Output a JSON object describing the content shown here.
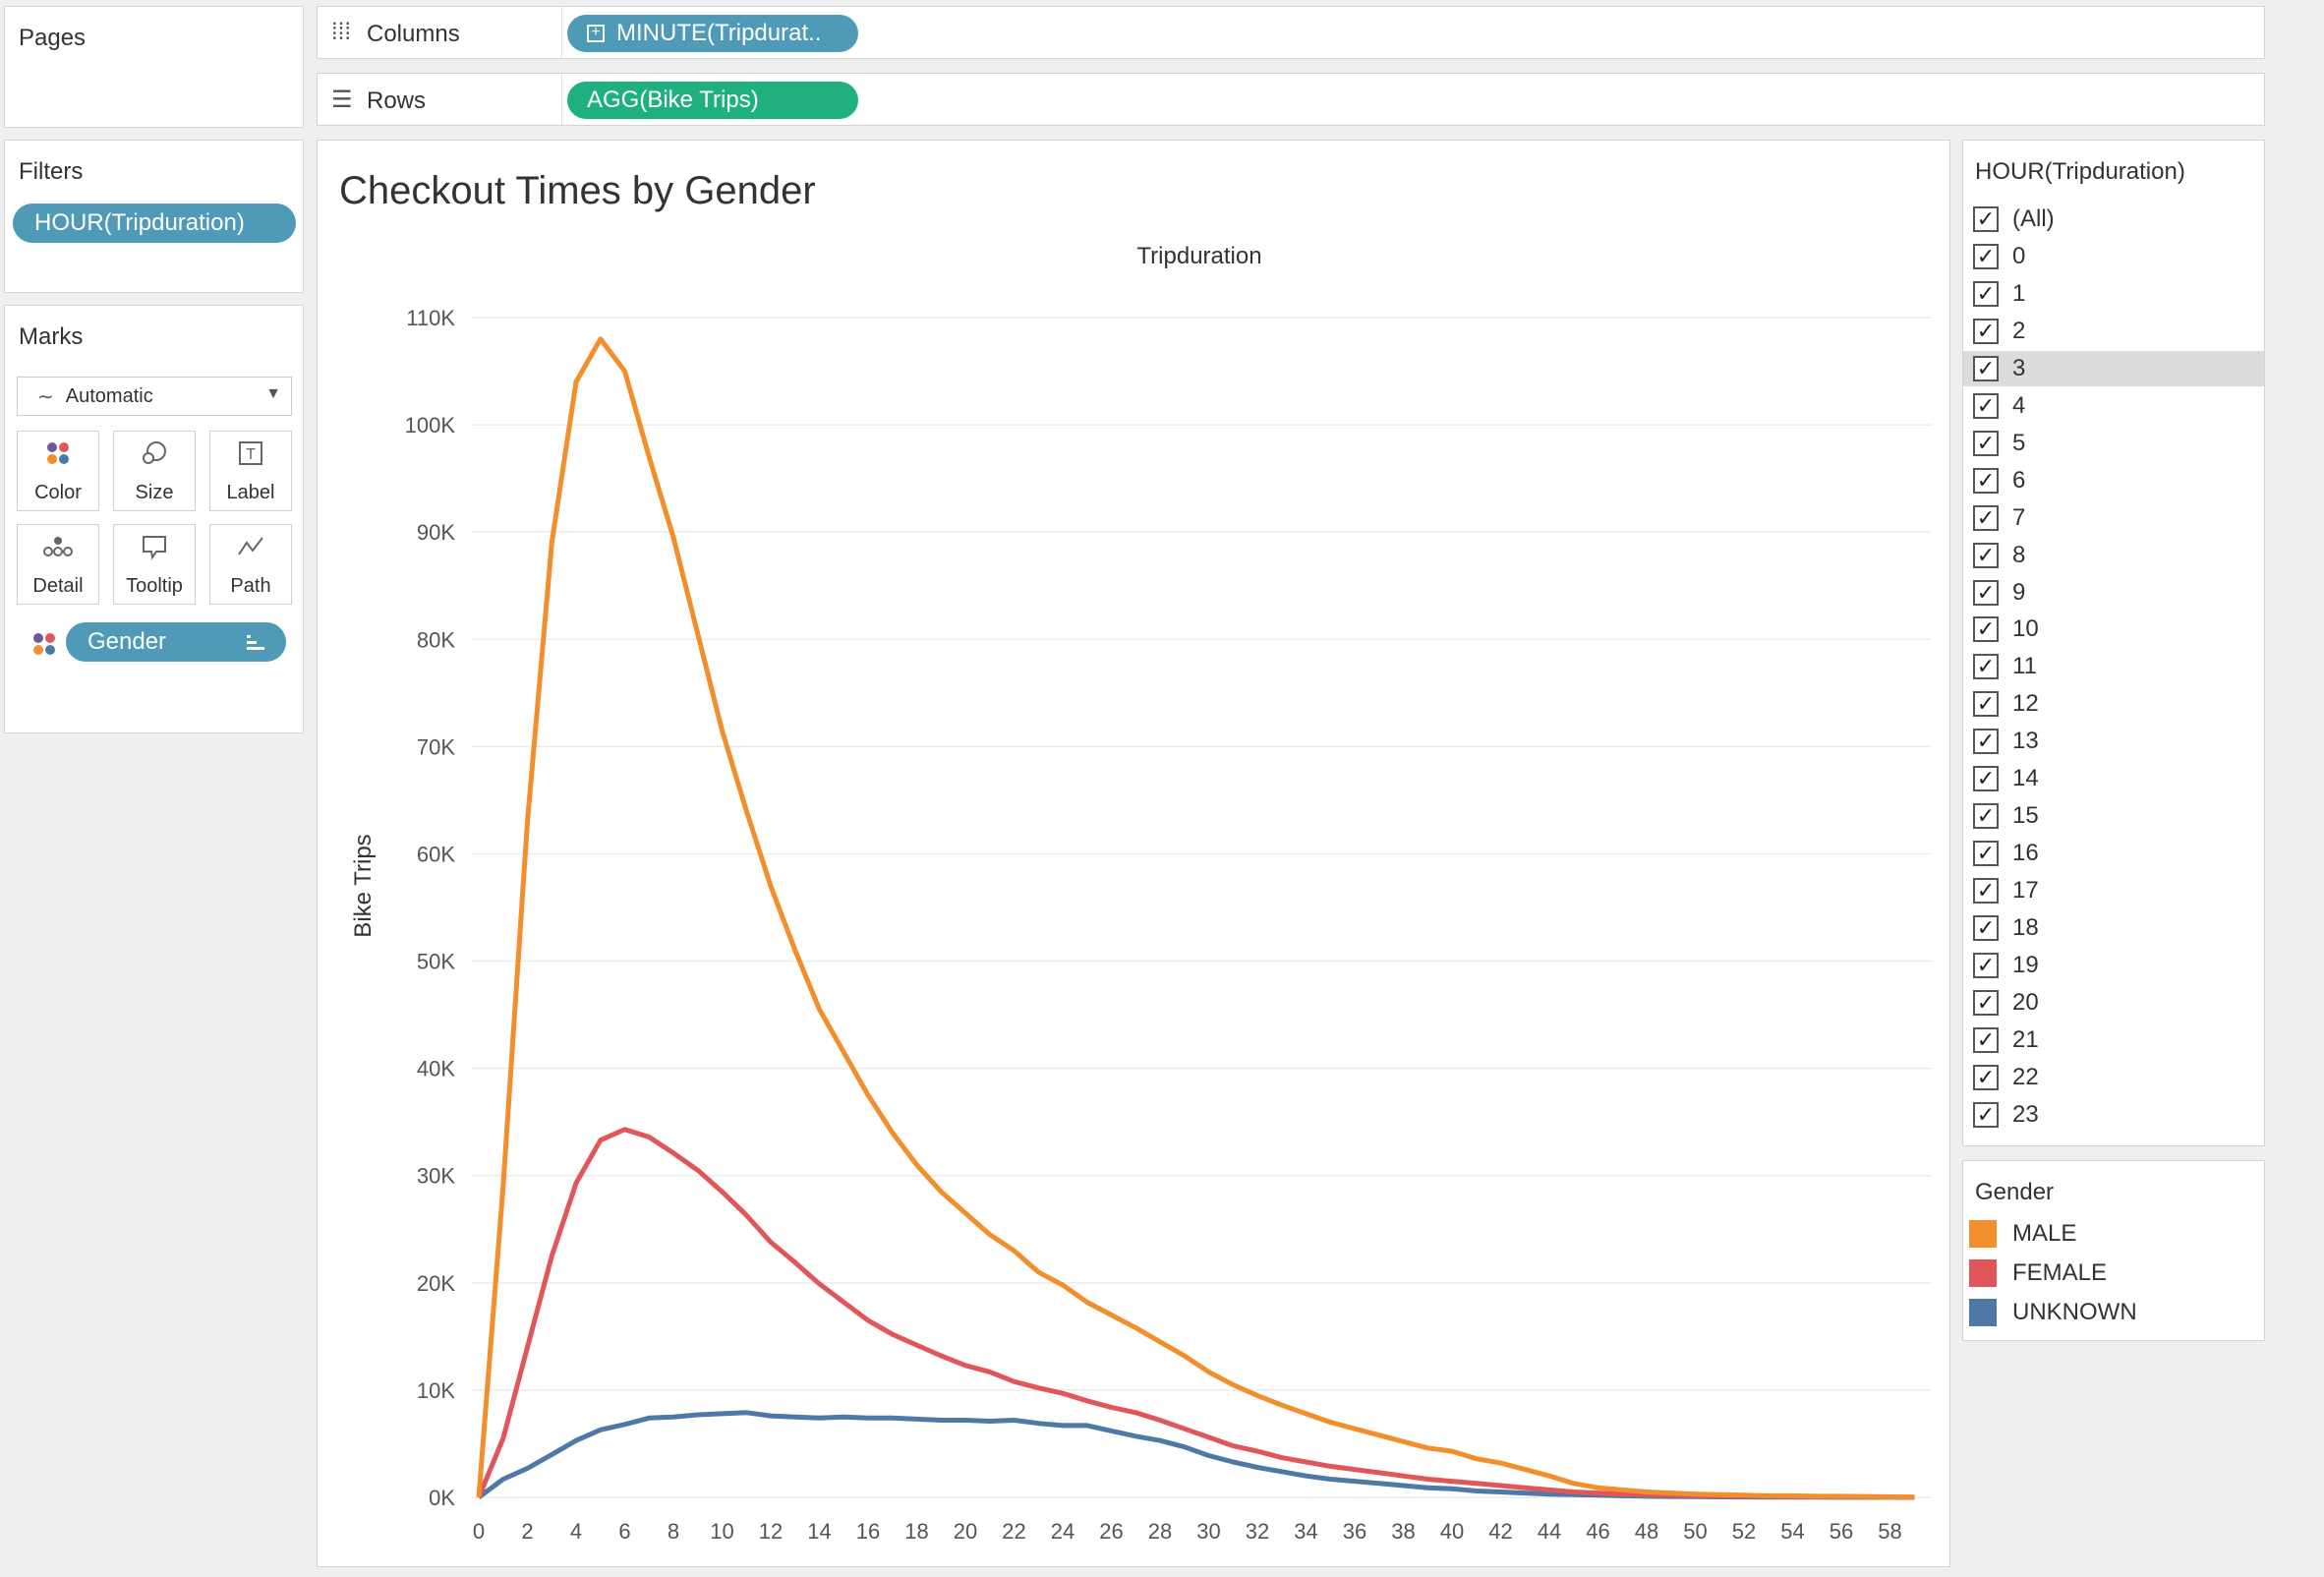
{
  "pages": {
    "title": "Pages"
  },
  "shelves": {
    "columns_label": "Columns",
    "columns_pill": "MINUTE(Tripdurat..",
    "rows_label": "Rows",
    "rows_pill": "AGG(Bike Trips)"
  },
  "filters": {
    "title": "Filters",
    "pill": "HOUR(Tripduration)"
  },
  "marks": {
    "title": "Marks",
    "mark_type": "Automatic",
    "buttons": [
      "Color",
      "Size",
      "Label",
      "Detail",
      "Tooltip",
      "Path"
    ],
    "gender_pill": "Gender"
  },
  "hour_filter": {
    "title": "HOUR(Tripduration)",
    "items": [
      "(All)",
      "0",
      "1",
      "2",
      "3",
      "4",
      "5",
      "6",
      "7",
      "8",
      "9",
      "10",
      "11",
      "12",
      "13",
      "14",
      "15",
      "16",
      "17",
      "18",
      "19",
      "20",
      "21",
      "22",
      "23"
    ],
    "highlighted": "3"
  },
  "legend": {
    "title": "Gender",
    "items": [
      {
        "label": "MALE",
        "color": "#f28e2b"
      },
      {
        "label": "FEMALE",
        "color": "#e15759"
      },
      {
        "label": "UNKNOWN",
        "color": "#4e79a7"
      }
    ]
  },
  "chart_data": {
    "type": "line",
    "title": "Checkout Times by Gender",
    "xlabel": "Tripduration",
    "ylabel": "Bike Trips",
    "xlim": [
      0,
      59
    ],
    "ylim": [
      0,
      110000
    ],
    "x_ticks": [
      "0",
      "2",
      "4",
      "6",
      "8",
      "10",
      "12",
      "14",
      "16",
      "18",
      "20",
      "22",
      "24",
      "26",
      "28",
      "30",
      "32",
      "34",
      "36",
      "38",
      "40",
      "42",
      "44",
      "46",
      "48",
      "50",
      "52",
      "54",
      "56",
      "58"
    ],
    "y_ticks": [
      "0K",
      "10K",
      "20K",
      "30K",
      "40K",
      "50K",
      "60K",
      "70K",
      "80K",
      "90K",
      "100K",
      "110K"
    ],
    "grid": true,
    "x": [
      0,
      1,
      2,
      3,
      4,
      5,
      6,
      7,
      8,
      9,
      10,
      11,
      12,
      13,
      14,
      15,
      16,
      17,
      18,
      19,
      20,
      21,
      22,
      23,
      24,
      25,
      26,
      27,
      28,
      29,
      30,
      31,
      32,
      33,
      34,
      35,
      36,
      37,
      38,
      39,
      40,
      41,
      42,
      43,
      44,
      45,
      46,
      47,
      48,
      49,
      50,
      51,
      52,
      53,
      54,
      55,
      56,
      57,
      58,
      59
    ],
    "series": [
      {
        "name": "MALE",
        "color": "#f28e2b",
        "values": [
          0,
          29000,
          63000,
          89000,
          104000,
          108000,
          105000,
          97000,
          89500,
          80500,
          71500,
          64000,
          57000,
          51000,
          45500,
          41500,
          37500,
          34000,
          31000,
          28500,
          26500,
          24500,
          23000,
          21000,
          19800,
          18200,
          17000,
          15800,
          14500,
          13200,
          11700,
          10500,
          9500,
          8600,
          7800,
          7000,
          6400,
          5800,
          5200,
          4600,
          4300,
          3600,
          3200,
          2600,
          2000,
          1300,
          900,
          700,
          500,
          400,
          300,
          250,
          200,
          150,
          150,
          100,
          100,
          80,
          50,
          30
        ]
      },
      {
        "name": "FEMALE",
        "color": "#e15759",
        "values": [
          0,
          5500,
          14000,
          22500,
          29300,
          33300,
          34300,
          33600,
          32100,
          30500,
          28500,
          26300,
          23800,
          21900,
          19900,
          18200,
          16500,
          15200,
          14200,
          13200,
          12300,
          11700,
          10800,
          10200,
          9700,
          9000,
          8400,
          7900,
          7200,
          6400,
          5600,
          4800,
          4300,
          3700,
          3300,
          2900,
          2600,
          2300,
          2000,
          1700,
          1500,
          1300,
          1100,
          900,
          700,
          500,
          400,
          300,
          250,
          200,
          150,
          120,
          100,
          80,
          60,
          50,
          40,
          30,
          20,
          10
        ]
      },
      {
        "name": "UNKNOWN",
        "color": "#4e79a7",
        "values": [
          0,
          1700,
          2700,
          4000,
          5300,
          6300,
          6800,
          7400,
          7500,
          7700,
          7800,
          7900,
          7600,
          7500,
          7400,
          7500,
          7400,
          7400,
          7300,
          7200,
          7200,
          7100,
          7200,
          6900,
          6700,
          6700,
          6200,
          5700,
          5300,
          4700,
          3900,
          3300,
          2800,
          2400,
          2000,
          1700,
          1500,
          1300,
          1100,
          900,
          800,
          600,
          500,
          400,
          300,
          250,
          200,
          150,
          100,
          80,
          60,
          50,
          40,
          30,
          20,
          15,
          10,
          5,
          5,
          0
        ]
      }
    ]
  }
}
